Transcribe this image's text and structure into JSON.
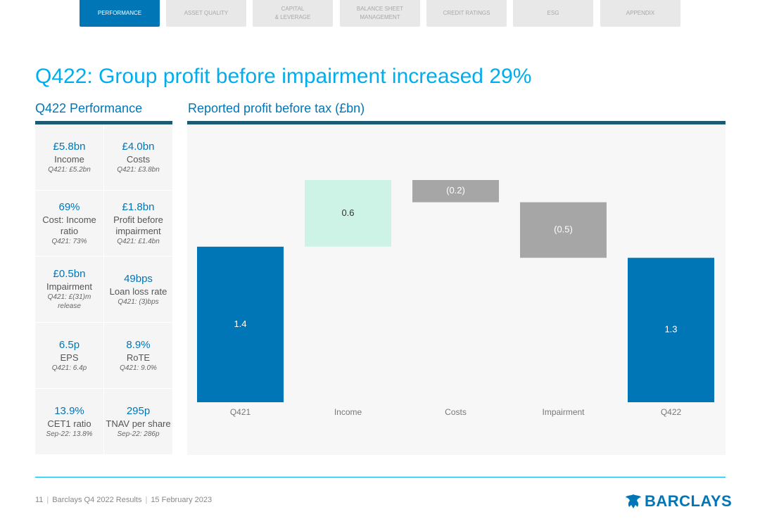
{
  "nav": [
    "PERFORMANCE",
    "ASSET QUALITY",
    "CAPITAL\n& LEVERAGE",
    "BALANCE SHEET\nMANAGEMENT",
    "CREDIT RATINGS",
    "ESG",
    "APPENDIX"
  ],
  "title": "Q422: Group profit before impairment increased 29%",
  "performance": {
    "heading": "Q422 Performance",
    "rows": [
      [
        {
          "value": "£5.8bn",
          "label": "Income",
          "note": "Q421: £5.2bn"
        },
        {
          "value": "£4.0bn",
          "label": "Costs",
          "note": "Q421: £3.8bn"
        }
      ],
      [
        {
          "value": "69%",
          "label": "Cost: Income ratio",
          "note": "Q421: 73%"
        },
        {
          "value": "£1.8bn",
          "label": "Profit before impairment",
          "note": "Q421: £1.4bn"
        }
      ],
      [
        {
          "value": "£0.5bn",
          "label": "Impairment",
          "note": "Q421: £(31)m release"
        },
        {
          "value": "49bps",
          "label": "Loan loss rate",
          "note": "Q421: (3)bps"
        }
      ],
      [
        {
          "value": "6.5p",
          "label": "EPS",
          "note": "Q421: 6.4p"
        },
        {
          "value": "8.9%",
          "label": "RoTE",
          "note": "Q421: 9.0%"
        }
      ],
      [
        {
          "value": "13.9%",
          "label": "CET1 ratio",
          "note": "Sep-22: 13.8%"
        },
        {
          "value": "295p",
          "label": "TNAV per share",
          "note": "Sep-22: 286p"
        }
      ]
    ]
  },
  "chart_data": {
    "type": "waterfall",
    "title": "Reported profit before tax (£bn)",
    "categories": [
      "Q421",
      "Income",
      "Costs",
      "Impairment",
      "Q422"
    ],
    "values": [
      1.4,
      0.6,
      -0.2,
      -0.5,
      1.3
    ],
    "value_labels": [
      "1.4",
      "0.6",
      "(0.2)",
      "(0.5)",
      "1.3"
    ],
    "is_total": [
      true,
      false,
      false,
      false,
      true
    ],
    "colors": {
      "total": "#0076b6",
      "increase": "#cdf3e6",
      "decrease": "#a6a6a6"
    }
  },
  "footer": {
    "page": "11",
    "doc": "Barclays Q4 2022 Results",
    "date": "15 February 2023",
    "logo": "BARCLAYS"
  }
}
